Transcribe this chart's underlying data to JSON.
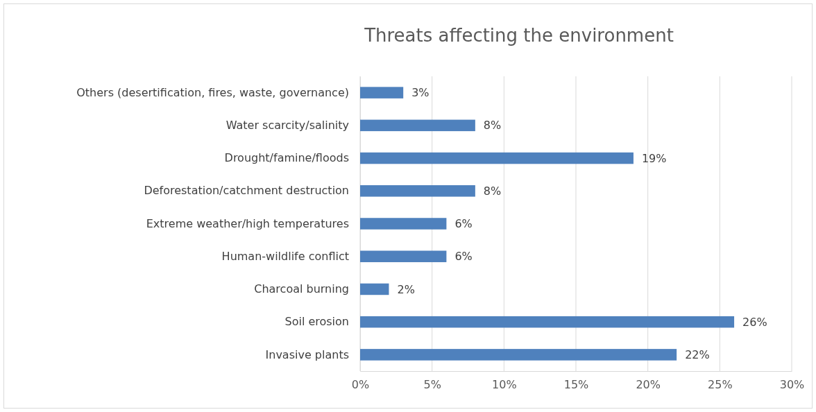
{
  "chart_data": {
    "type": "bar",
    "orientation": "horizontal",
    "title": "Threats affecting the environment",
    "categories": [
      "Others (desertification, fires, waste, governance)",
      "Water scarcity/salinity",
      "Drought/famine/floods",
      "Deforestation/catchment destruction",
      "Extreme weather/high temperatures",
      "Human-wildlife conflict",
      "Charcoal burning",
      "Soil erosion",
      "Invasive plants"
    ],
    "values": [
      3,
      8,
      19,
      8,
      6,
      6,
      2,
      26,
      22
    ],
    "value_labels": [
      "3%",
      "8%",
      "19%",
      "8%",
      "6%",
      "6%",
      "2%",
      "26%",
      "22%"
    ],
    "color": "#4f81bd",
    "xlim": [
      0,
      30
    ],
    "xticks": [
      {
        "value": 0,
        "label": "0%"
      },
      {
        "value": 5,
        "label": "5%"
      },
      {
        "value": 10,
        "label": "10%"
      },
      {
        "value": 15,
        "label": "15%"
      },
      {
        "value": 20,
        "label": "20%"
      },
      {
        "value": 25,
        "label": "25%"
      },
      {
        "value": 30,
        "label": "30%"
      }
    ],
    "grid": "x"
  }
}
